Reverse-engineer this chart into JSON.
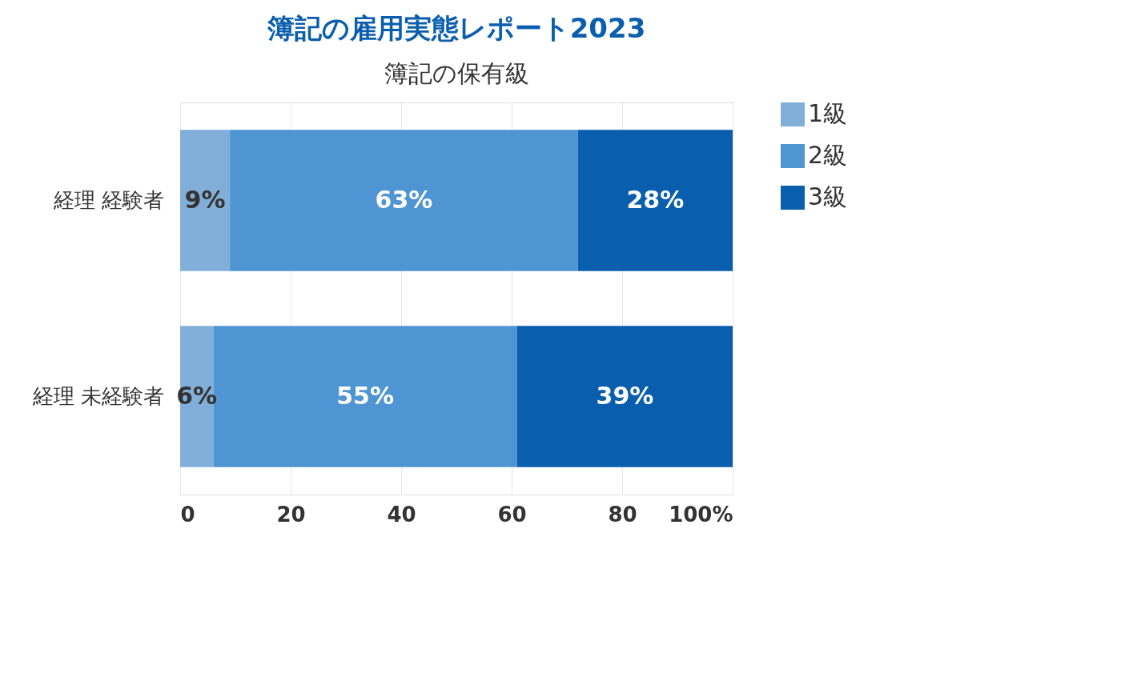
{
  "chart_data": {
    "type": "bar",
    "title": "簿記の雇用実態レポート2023",
    "subtitle": "簿記の保有級",
    "orientation": "horizontal",
    "stacked": true,
    "categories": [
      "経理 経験者",
      "経理 未経験者"
    ],
    "series": [
      {
        "name": "1級",
        "color": "#82afd9",
        "values": [
          9,
          6
        ],
        "value_labels": [
          "9%",
          "6%"
        ]
      },
      {
        "name": "2級",
        "color": "#4f95d3",
        "values": [
          63,
          55
        ],
        "value_labels": [
          "63%",
          "55%"
        ]
      },
      {
        "name": "3級",
        "color": "#0a5eae",
        "values": [
          28,
          39
        ],
        "value_labels": [
          "28%",
          "39%"
        ]
      }
    ],
    "xlim": [
      0,
      100
    ],
    "xticks": [
      0,
      20,
      40,
      60,
      80,
      {
        "value": 100,
        "label": "100%"
      }
    ],
    "grid": "x",
    "legend": "right"
  }
}
